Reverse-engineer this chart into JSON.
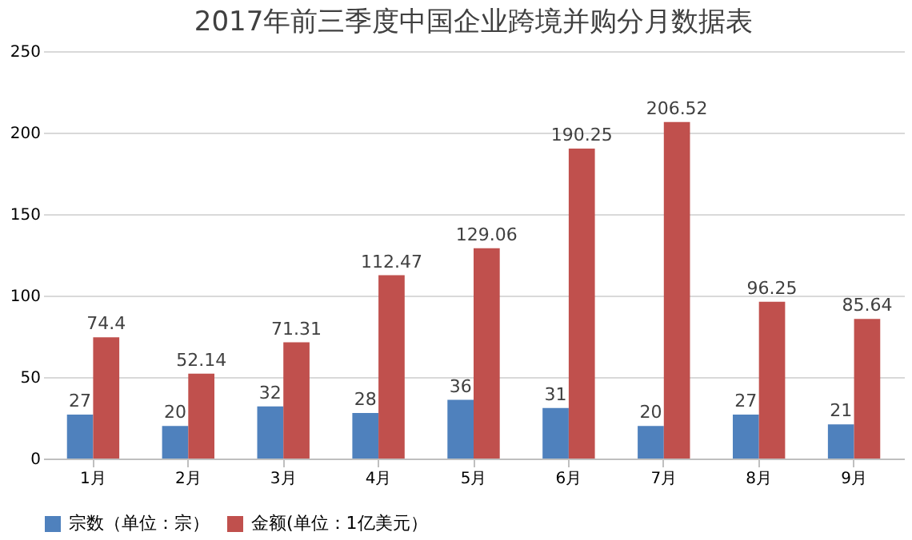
{
  "chart_data": {
    "type": "bar",
    "title": "2017年前三季度中国企业跨境并购分月数据表",
    "categories": [
      "1月",
      "2月",
      "3月",
      "4月",
      "5月",
      "6月",
      "7月",
      "8月",
      "9月"
    ],
    "series": [
      {
        "name": "宗数（单位：宗）",
        "color": "#4f81bd",
        "values": [
          27,
          20,
          32,
          28,
          36,
          31,
          20,
          27,
          21
        ]
      },
      {
        "name": "金额(单位：1亿美元）",
        "color": "#c0504d",
        "values": [
          74.4,
          52.14,
          71.31,
          112.47,
          129.06,
          190.25,
          206.52,
          96.25,
          85.64
        ]
      }
    ],
    "ylim": [
      0,
      250
    ],
    "yticks": [
      0,
      50,
      100,
      150,
      200,
      250
    ],
    "grid": "y",
    "legend": "bottom",
    "data_labels": true
  }
}
